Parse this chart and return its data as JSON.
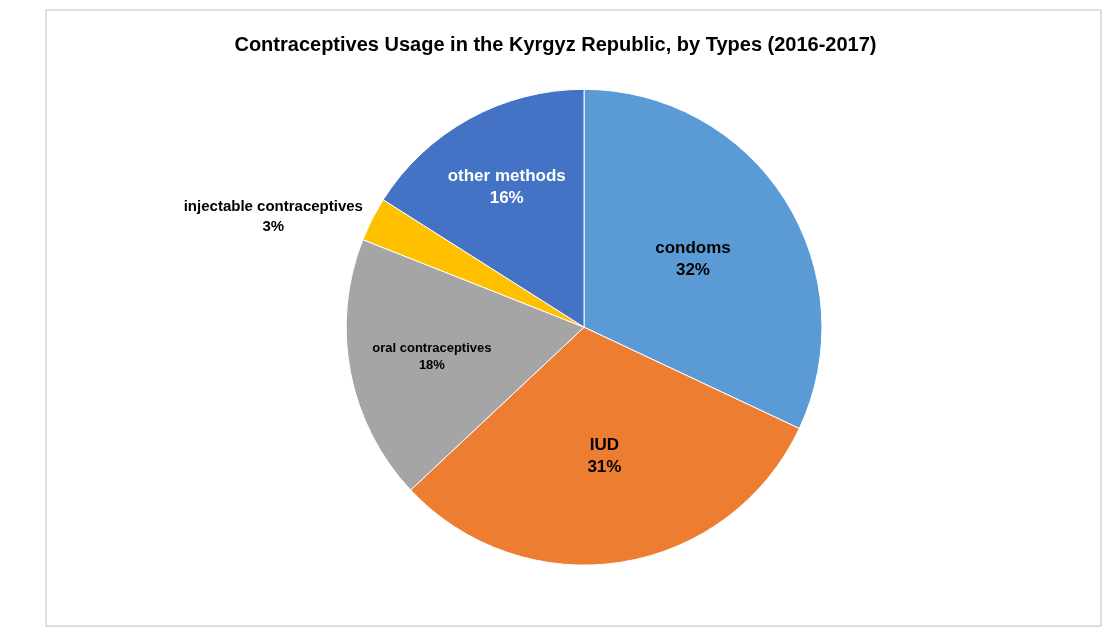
{
  "chart_data": {
    "type": "pie",
    "title": "Contraceptives Usage in the Kyrgyz Republic, by Types (2016-2017)",
    "categories": [
      "condoms",
      "IUD",
      "oral contraceptives",
      "injectable contraceptives",
      "other methods"
    ],
    "values": [
      32,
      31,
      18,
      3,
      16
    ],
    "value_labels": [
      "32%",
      "31%",
      "18%",
      "3%",
      "16%"
    ],
    "colors": [
      "#5b9bd5",
      "#ed7d31",
      "#a5a5a5",
      "#ffc000",
      "#4472c4"
    ],
    "legend": false
  }
}
